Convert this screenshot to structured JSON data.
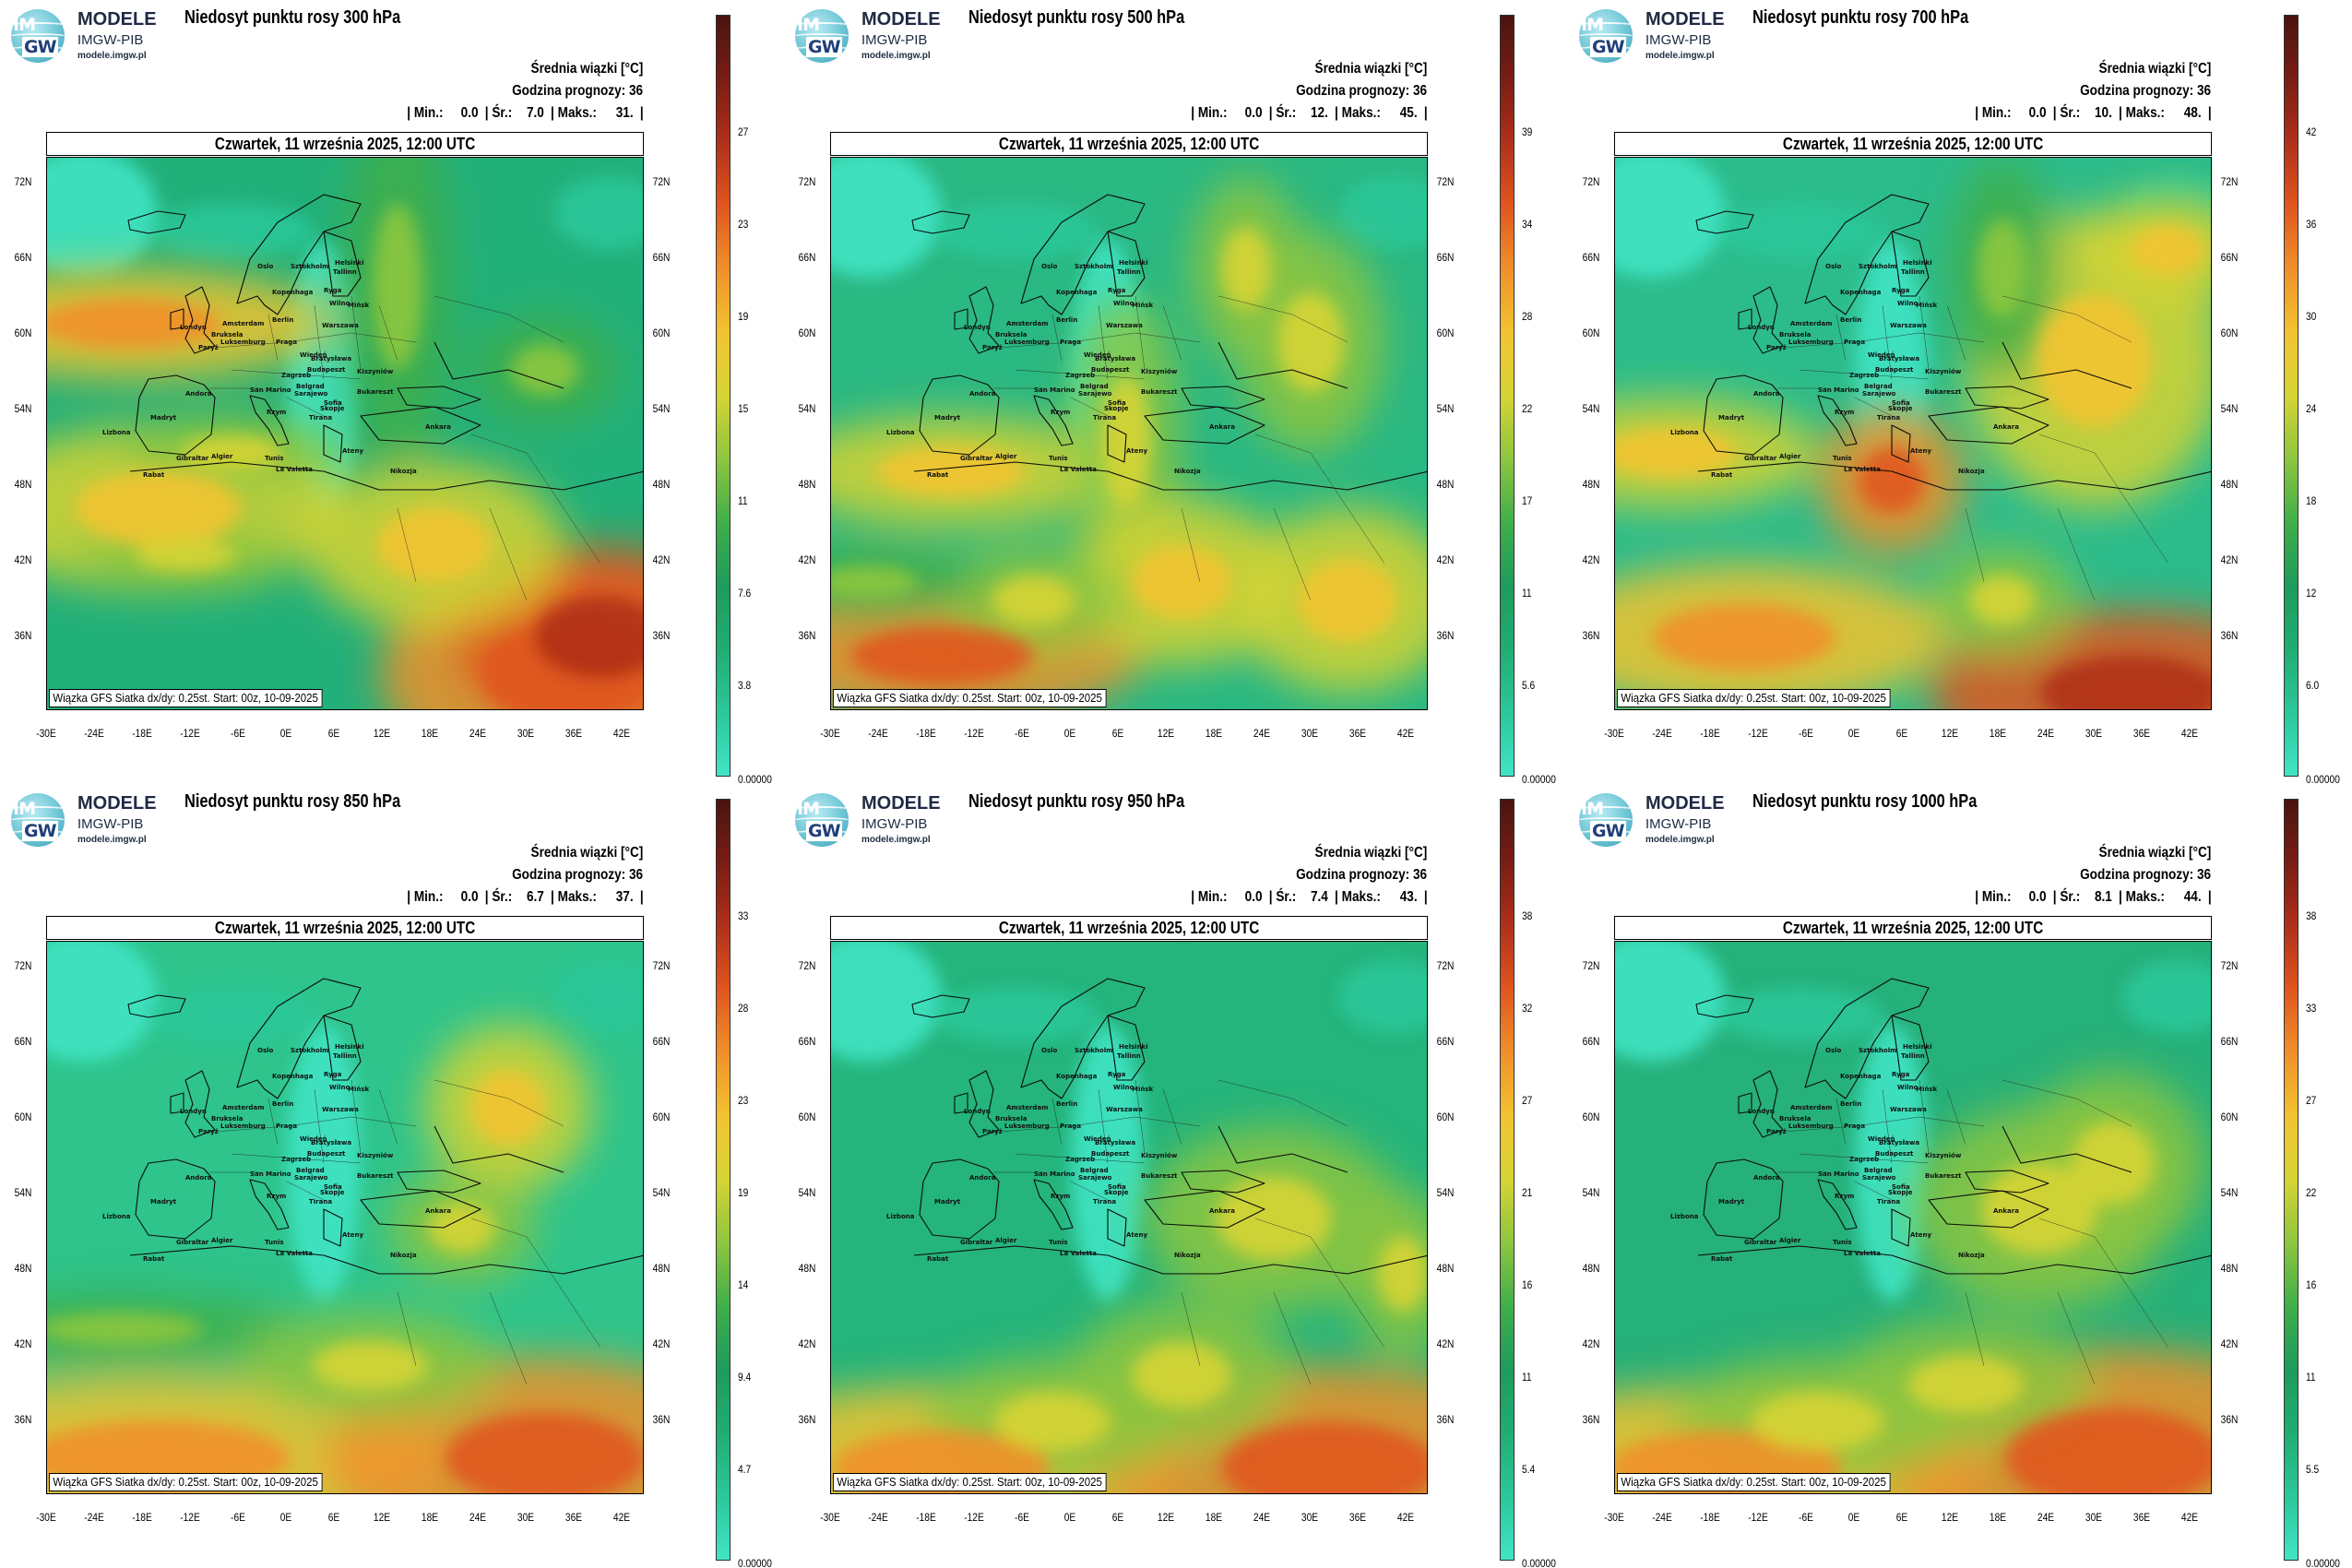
{
  "logo": {
    "line1": "MODELE",
    "line2": "IMGW-PIB",
    "line3": "modele.imgw.pl",
    "badge_top": "IM",
    "badge_bottom": "GW"
  },
  "common": {
    "subtitle1": "Średnia wiązki [°C]",
    "subtitle2": "Godzina prognozy: 36",
    "min_label": "| Min.:",
    "avg_label": "| Śr.:",
    "max_label": "| Maks.:",
    "date": "Czwartek, 11 września 2025, 12:00 UTC",
    "footer": "Wiązka GFS Siatka dx/dy: 0.25st. Start: 00z, 10-09-2025",
    "lat_labels": [
      "72N",
      "66N",
      "60N",
      "54N",
      "48N",
      "42N",
      "36N"
    ],
    "lon_labels": [
      "-30E",
      "-24E",
      "-18E",
      "-12E",
      "-6E",
      "0E",
      "6E",
      "12E",
      "18E",
      "24E",
      "30E",
      "36E",
      "42E"
    ],
    "cities": [
      "Oslo",
      "Sztokholm",
      "Helsinki",
      "Tallinn",
      "Ryga",
      "Wilno",
      "Mińsk",
      "Kopenhaga",
      "Amsterdam",
      "Londyn",
      "Bruksela",
      "Luksemburg",
      "Paryż",
      "Berlin",
      "Praga",
      "Warszawa",
      "Wiedeń",
      "Bratysława",
      "Budapeszt",
      "Kiszyniów",
      "Zagrzeb",
      "Belgrad",
      "Sarajewo",
      "Bukareszt",
      "Sofia",
      "San Marino",
      "Skopje",
      "Tirana",
      "Rzym",
      "Andora",
      "Madryt",
      "Lizbona",
      "Ankara",
      "Ateny",
      "Gibraltar",
      "Rabat",
      "Algier",
      "Tunis",
      "La Valetta",
      "Nikozja"
    ],
    "colorscale": [
      "#40e4c4",
      "#2cc79a",
      "#20ad72",
      "#1d9c5c",
      "#3fae4a",
      "#8dc63f",
      "#d6d434",
      "#f2c330",
      "#f0902a",
      "#e0561e",
      "#b0301a",
      "#7a1d14",
      "#4a1410"
    ]
  },
  "panels": [
    {
      "title": "Niedosyt punktu rosy 300 hPa",
      "min": "0.0",
      "avg": "7.0",
      "max": "31.",
      "max_end": "|",
      "ticks": [
        "27",
        "23",
        "19",
        "15",
        "11",
        "7.6",
        "3.8",
        "0.00000"
      ],
      "cbar_max": 31
    },
    {
      "title": "Niedosyt punktu rosy 500 hPa",
      "min": "0.0",
      "avg": "12.",
      "max": "45.",
      "max_end": "|",
      "ticks": [
        "39",
        "34",
        "28",
        "22",
        "17",
        "11",
        "5.6",
        "0.00000"
      ],
      "cbar_max": 45
    },
    {
      "title": "Niedosyt punktu rosy 700 hPa",
      "min": "0.0",
      "avg": "10.",
      "max": "48.",
      "max_end": "|",
      "ticks": [
        "42",
        "36",
        "30",
        "24",
        "18",
        "12",
        "6.0",
        "0.00000"
      ],
      "cbar_max": 48
    },
    {
      "title": "Niedosyt punktu rosy 850 hPa",
      "min": "0.0",
      "avg": "6.7",
      "max": "37.",
      "max_end": "|",
      "ticks": [
        "33",
        "28",
        "23",
        "19",
        "14",
        "9.4",
        "4.7",
        "0.00000"
      ],
      "cbar_max": 37
    },
    {
      "title": "Niedosyt punktu rosy 950 hPa",
      "min": "0.0",
      "avg": "7.4",
      "max": "43.",
      "max_end": "|",
      "ticks": [
        "38",
        "32",
        "27",
        "21",
        "16",
        "11",
        "5.4",
        "0.00000"
      ],
      "cbar_max": 43
    },
    {
      "title": "Niedosyt punktu rosy 1000 hPa",
      "min": "0.0",
      "avg": "8.1",
      "max": "44.",
      "max_end": "|",
      "ticks": [
        "38",
        "33",
        "27",
        "22",
        "16",
        "11",
        "5.5",
        "0.00000"
      ],
      "cbar_max": 44
    }
  ]
}
